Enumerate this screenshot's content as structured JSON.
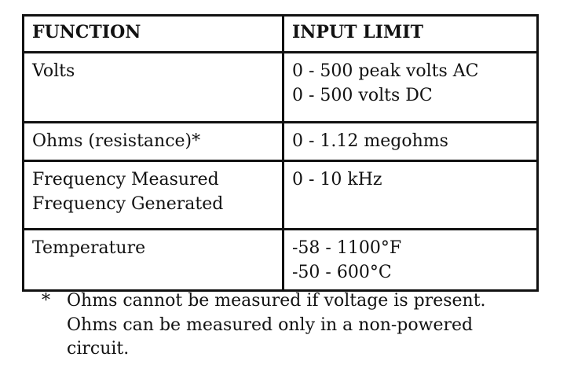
{
  "table": {
    "header": [
      "FUNCTION",
      "INPUT LIMIT"
    ],
    "rows": [
      [
        [
          "Volts"
        ],
        [
          "0 - 500 peak volts AC",
          "0 - 500 volts DC"
        ]
      ],
      [
        [
          "Ohms (resistance)*"
        ],
        [
          "0 - 1.12 megohms"
        ]
      ],
      [
        [
          "Frequency Measured",
          "Frequency Generated"
        ],
        [
          "0 - 10 kHz"
        ]
      ],
      [
        [
          "Temperature"
        ],
        [
          "-58 - 1100°F",
          "-50 - 600°C"
        ]
      ]
    ]
  },
  "footnote": {
    "marker": "*",
    "lines": [
      "Ohms cannot be measured if voltage is present.",
      "Ohms can be measured only in a non-powered",
      "circuit."
    ]
  }
}
